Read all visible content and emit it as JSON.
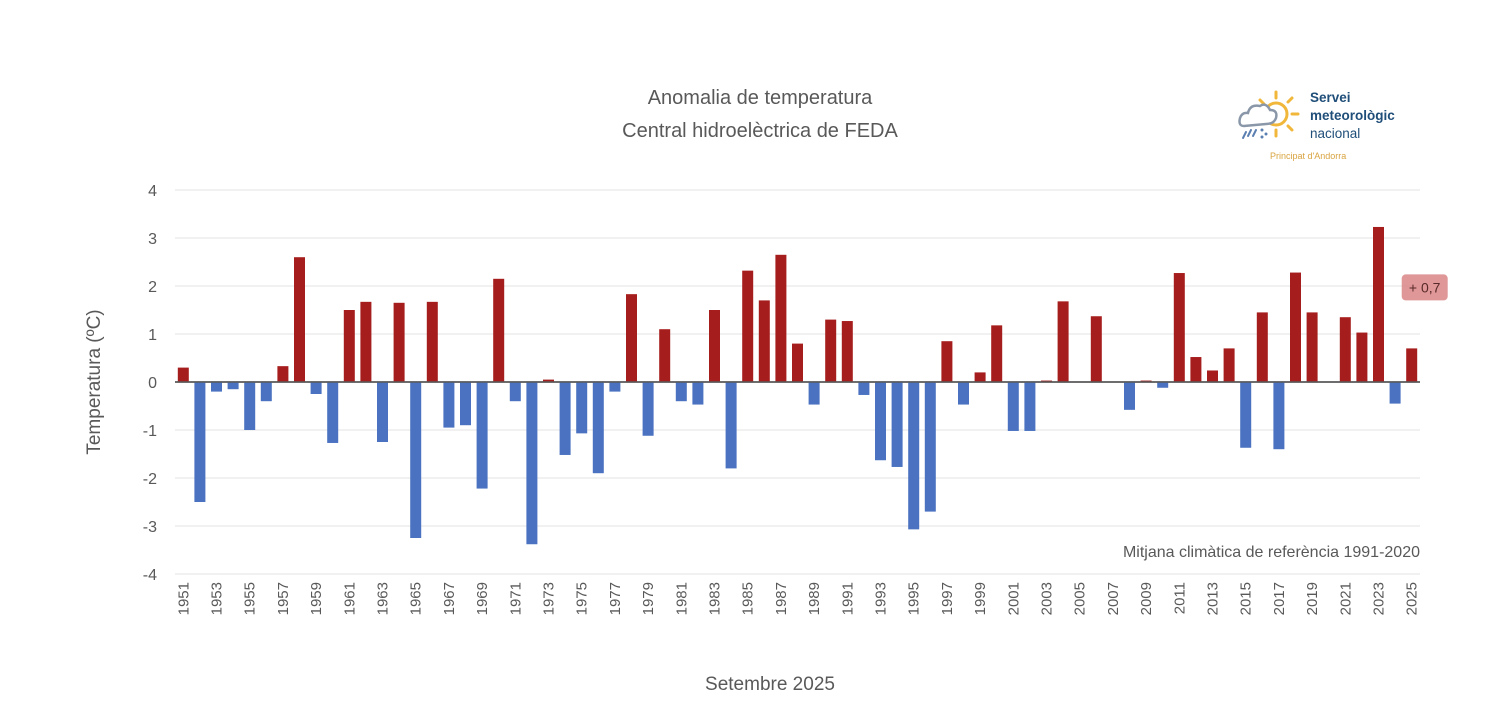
{
  "chart_data": {
    "type": "bar",
    "title": "Anomalia de temperatura",
    "subtitle": "Central hidroelèctrica de FEDA",
    "xlabel": "Setembre 2025",
    "ylabel": "Temperatura (ºC)",
    "note": "Mitjana climàtica de referència 1991-2020",
    "ylim": [
      -4,
      4
    ],
    "yticks": [
      4,
      3,
      2,
      1,
      0,
      -1,
      -2,
      -3,
      -4
    ],
    "grid": true,
    "legend": "none",
    "colors": {
      "positive": "#a61d1d",
      "negative": "#4a72c0",
      "annotation_bg": "#d98585"
    },
    "categories": [
      1951,
      1952,
      1953,
      1954,
      1955,
      1956,
      1957,
      1958,
      1959,
      1960,
      1961,
      1962,
      1963,
      1964,
      1965,
      1966,
      1967,
      1968,
      1969,
      1970,
      1971,
      1972,
      1973,
      1974,
      1975,
      1976,
      1977,
      1978,
      1979,
      1980,
      1981,
      1982,
      1983,
      1984,
      1985,
      1986,
      1987,
      1988,
      1989,
      1990,
      1991,
      1992,
      1993,
      1994,
      1995,
      1996,
      1997,
      1998,
      1999,
      2000,
      2001,
      2002,
      2003,
      2004,
      2005,
      2006,
      2007,
      2008,
      2009,
      2010,
      2011,
      2012,
      2013,
      2014,
      2015,
      2016,
      2017,
      2018,
      2019,
      2020,
      2021,
      2022,
      2023,
      2024,
      2025
    ],
    "values": [
      0.3,
      -2.5,
      -0.2,
      -0.15,
      -1.0,
      -0.4,
      0.33,
      2.6,
      -0.25,
      -1.27,
      1.5,
      1.67,
      -1.25,
      1.65,
      -3.25,
      1.67,
      -0.95,
      -0.9,
      -2.22,
      2.15,
      -0.4,
      -3.38,
      0.05,
      -1.52,
      -1.07,
      -1.9,
      -0.2,
      1.83,
      -1.12,
      1.1,
      -0.4,
      -0.47,
      1.5,
      -1.8,
      2.32,
      1.7,
      2.65,
      0.8,
      -0.47,
      1.3,
      1.27,
      -0.27,
      -1.63,
      -1.77,
      -3.07,
      -2.7,
      0.85,
      -0.47,
      0.2,
      1.18,
      -1.02,
      -1.02,
      0.03,
      1.68,
      0,
      1.37,
      0,
      -0.58,
      0.03,
      -0.12,
      2.27,
      0.52,
      0.24,
      0.7,
      -1.37,
      1.45,
      -1.4,
      2.28,
      1.45,
      0,
      1.35,
      1.03,
      3.23,
      -0.45,
      0.7
    ],
    "xtick_labels": [
      "1951",
      "1953",
      "1955",
      "1957",
      "1959",
      "1961",
      "1963",
      "1965",
      "1967",
      "1969",
      "1971",
      "1973",
      "1975",
      "1977",
      "1979",
      "1981",
      "1983",
      "1985",
      "1987",
      "1989",
      "1991",
      "1993",
      "1995",
      "1997",
      "1999",
      "2001",
      "2003",
      "2005",
      "2007",
      "2009",
      "2011",
      "2013",
      "2015",
      "2017",
      "2019",
      "2021",
      "2023",
      "2025"
    ],
    "annotation": {
      "year": 2025,
      "label": "+ 0,7"
    }
  },
  "logo": {
    "line1": "Servei",
    "line2": "meteorològic",
    "line3": "nacional",
    "sub": "Principat d'Andorra",
    "icon": "sun-cloud-rain-icon"
  }
}
